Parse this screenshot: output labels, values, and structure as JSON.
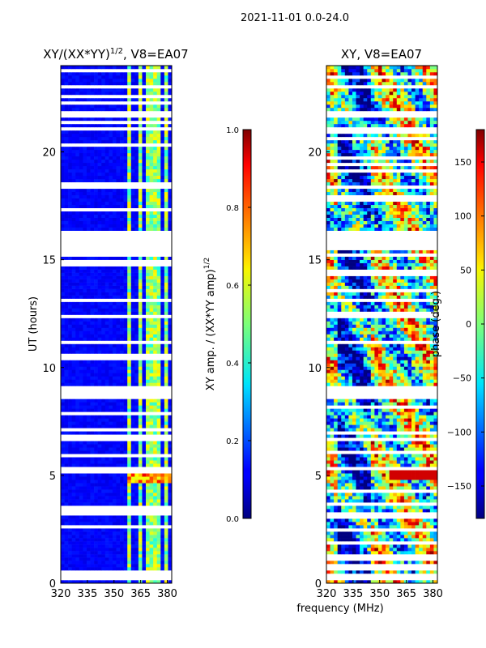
{
  "figure": {
    "suptitle": "2021-11-01 0.0-24.0",
    "shared_xlabel": "frequency (MHz)"
  },
  "chart_data": [
    {
      "type": "heatmap",
      "title_main": "XY/(XX*YY)",
      "title_sup": "1/2",
      "title_rest": ", V8=EA07",
      "ylabel": "UT (hours)",
      "xlim": [
        320,
        382.5
      ],
      "ylim": [
        0,
        24
      ],
      "xticks": [
        320,
        335,
        350,
        365,
        380
      ],
      "yticks": [
        0,
        5,
        10,
        15,
        20
      ],
      "colorbar": {
        "label_main": "XY amp. / (XX*YY amp)",
        "label_sup": "1/2",
        "min": 0.0,
        "max": 1.0,
        "ticks": [
          "0.0",
          "0.2",
          "0.4",
          "0.6",
          "0.8",
          "1.0"
        ],
        "tick_values": [
          0.0,
          0.2,
          0.4,
          0.6,
          0.8,
          1.0
        ]
      },
      "bright_channels_mhz": [
        359,
        365,
        370,
        374,
        379
      ],
      "data_gaps_ut": [
        [
          0.1,
          0.4
        ],
        [
          5.3,
          5.45
        ],
        [
          8.6,
          9.1
        ],
        [
          15.5,
          16.4
        ],
        [
          21.0,
          21.2
        ]
      ]
    },
    {
      "type": "heatmap",
      "title": "XY, V8=EA07",
      "ylabel": "",
      "xlim": [
        320,
        382.5
      ],
      "ylim": [
        0,
        24
      ],
      "xticks": [
        320,
        335,
        350,
        365,
        380
      ],
      "yticks": [
        0,
        5,
        10,
        15,
        20
      ],
      "colorbar": {
        "label": "phase (deg.)",
        "min": -180,
        "max": 180,
        "ticks": [
          "−150",
          "−100",
          "−50",
          "0",
          "50",
          "100",
          "150"
        ],
        "tick_values": [
          -150,
          -100,
          -50,
          0,
          50,
          100,
          150
        ]
      },
      "data_gaps_ut": [
        [
          0.1,
          0.4
        ],
        [
          5.3,
          5.45
        ],
        [
          8.6,
          9.1
        ],
        [
          15.5,
          16.4
        ],
        [
          21.0,
          21.2
        ]
      ]
    }
  ]
}
